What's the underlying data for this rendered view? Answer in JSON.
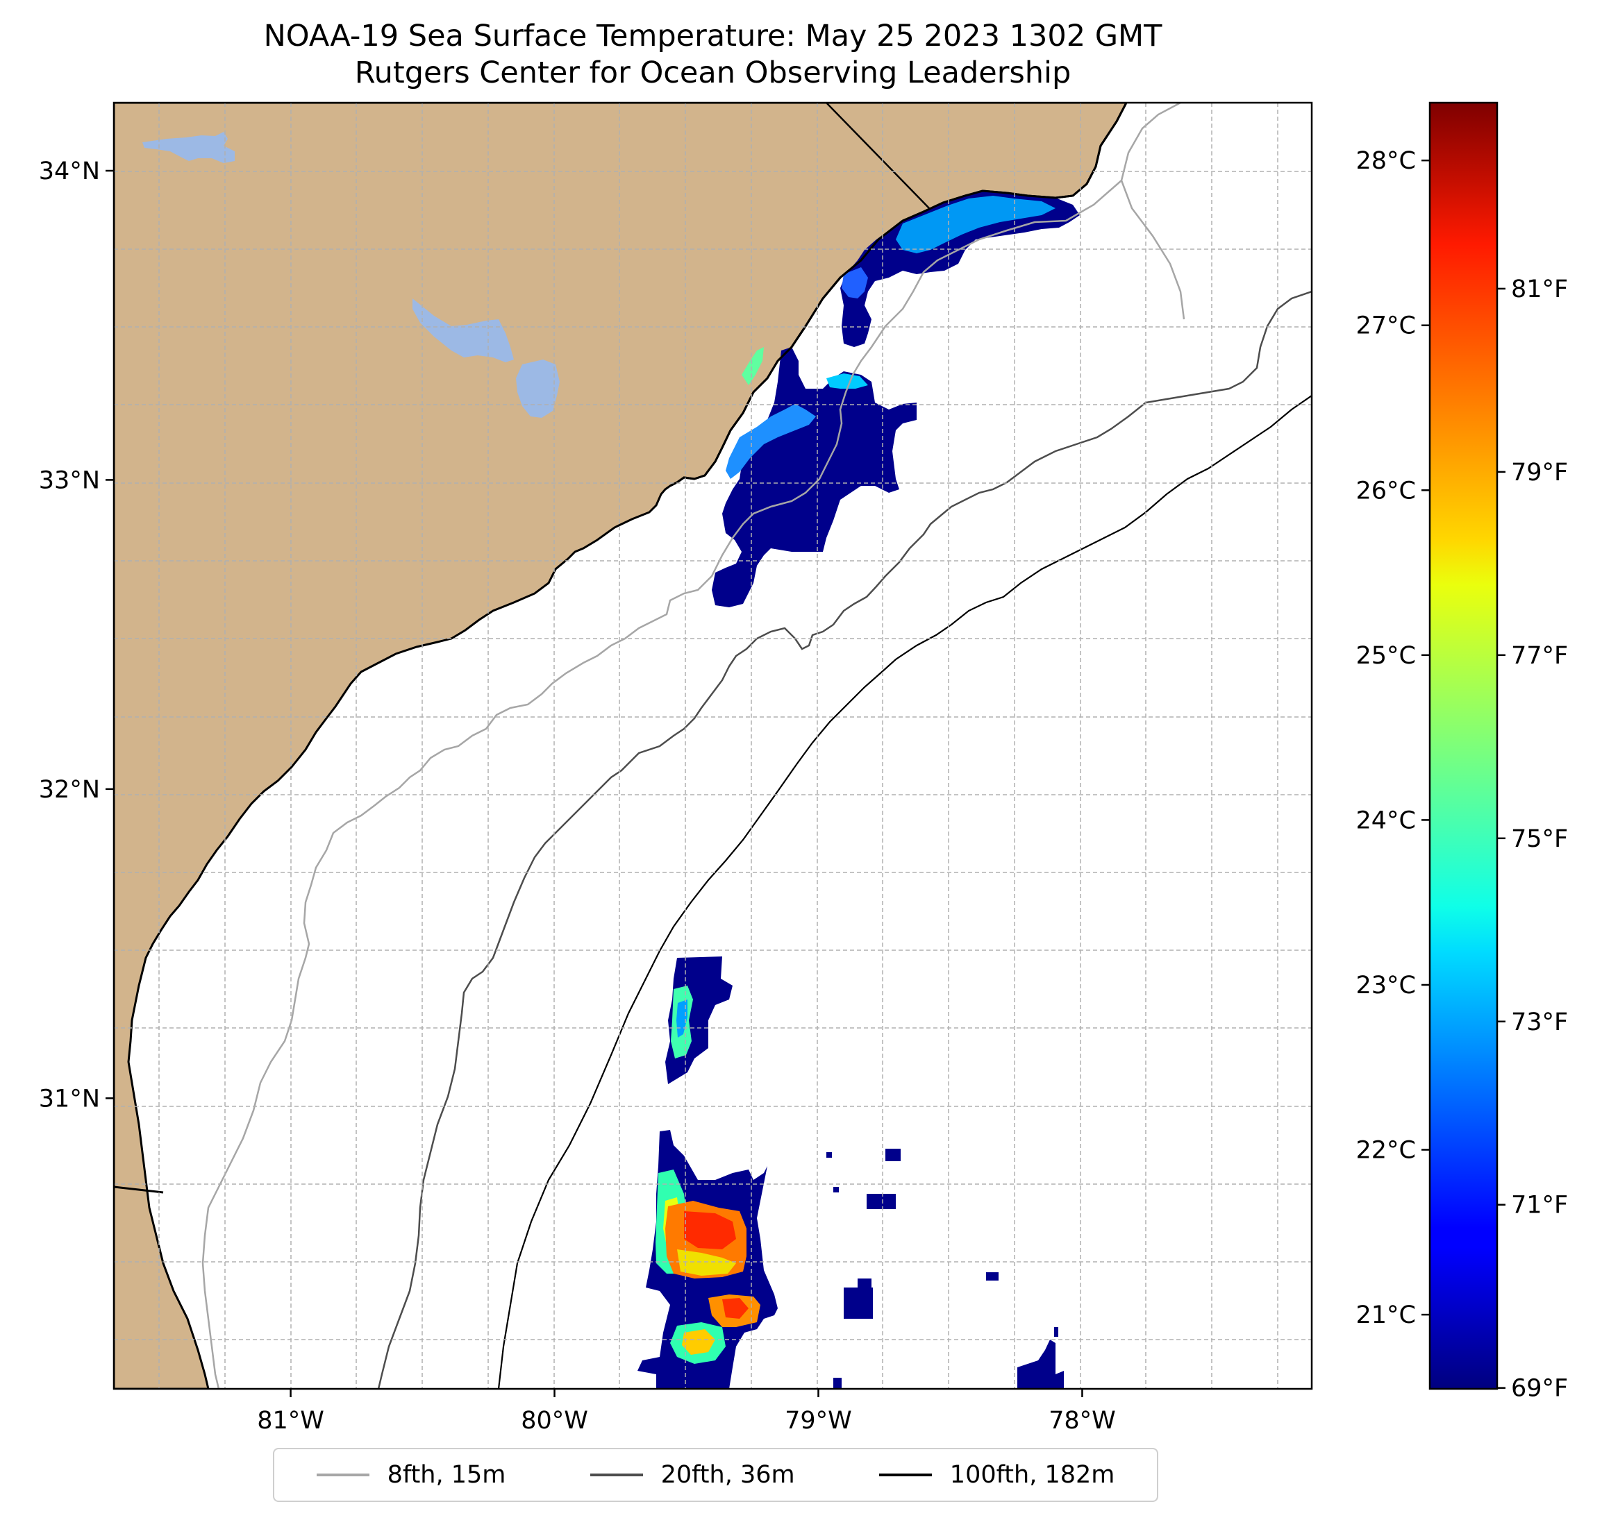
{
  "title": {
    "line1": "NOAA-19 Sea Surface Temperature: May 25 2023 1302 GMT",
    "line2": "Rutgers Center for Ocean Observing Leadership"
  },
  "map": {
    "lon_range": [
      -81.67,
      -77.13
    ],
    "lat_range": [
      30.06,
      34.22
    ],
    "lat_ticks": [
      {
        "value": 34,
        "label": "34°N"
      },
      {
        "value": 33,
        "label": "33°N"
      },
      {
        "value": 32,
        "label": "32°N"
      },
      {
        "value": 31,
        "label": "31°N"
      }
    ],
    "lon_ticks": [
      {
        "value": -81,
        "label": "81°W"
      },
      {
        "value": -80,
        "label": "80°W"
      },
      {
        "value": -79,
        "label": "79°W"
      },
      {
        "value": -78,
        "label": "78°W"
      }
    ],
    "land_color": "#d2b48c",
    "water_body_color": "#9cb9e5"
  },
  "colorbar": {
    "colormap": "jet",
    "celsius_range": [
      20.55,
      28.35
    ],
    "celsius_ticks": [
      {
        "value": 21,
        "label": "21°C"
      },
      {
        "value": 22,
        "label": "22°C"
      },
      {
        "value": 23,
        "label": "23°C"
      },
      {
        "value": 24,
        "label": "24°C"
      },
      {
        "value": 25,
        "label": "25°C"
      },
      {
        "value": 26,
        "label": "26°C"
      },
      {
        "value": 27,
        "label": "27°C"
      },
      {
        "value": 28,
        "label": "28°C"
      }
    ],
    "fahrenheit_ticks": [
      {
        "value": 69,
        "label": "69°F"
      },
      {
        "value": 71,
        "label": "71°F"
      },
      {
        "value": 73,
        "label": "73°F"
      },
      {
        "value": 75,
        "label": "75°F"
      },
      {
        "value": 77,
        "label": "77°F"
      },
      {
        "value": 79,
        "label": "79°F"
      },
      {
        "value": 81,
        "label": "81°F"
      }
    ]
  },
  "legend": {
    "items": [
      {
        "label": "8fth, 15m",
        "color": "#a6a6a6"
      },
      {
        "label": "20fth, 36m",
        "color": "#4d4d4d"
      },
      {
        "label": "100fth, 182m",
        "color": "#000000"
      }
    ]
  }
}
